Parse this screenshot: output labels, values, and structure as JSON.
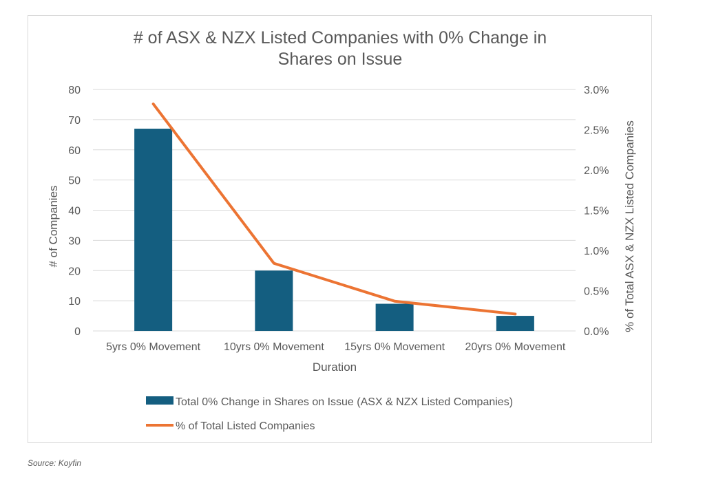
{
  "chart_data": {
    "type": "bar+line",
    "title_lines": [
      "# of ASX & NZX Listed Companies with 0% Change in",
      "Shares on Issue"
    ],
    "categories": [
      "5yrs 0% Movement",
      "10yrs 0% Movement",
      "15yrs 0% Movement",
      "20yrs 0% Movement"
    ],
    "xlabel": "Duration",
    "ylabel": "# of Companies",
    "y2label": "% of Total ASX & NZX Listed Companies",
    "ylim": [
      0,
      80
    ],
    "y_ticks": [
      0,
      10,
      20,
      30,
      40,
      50,
      60,
      70,
      80
    ],
    "y2lim": [
      0,
      3.0
    ],
    "y2_ticks": [
      0,
      0.5,
      1.0,
      1.5,
      2.0,
      2.5,
      3.0
    ],
    "y2_tick_labels": [
      "0.0%",
      "0.5%",
      "1.0%",
      "1.5%",
      "2.0%",
      "2.5%",
      "3.0%"
    ],
    "grid": true,
    "legend_position": "bottom",
    "series": [
      {
        "name": "Total 0% Change in Shares on Issue (ASX & NZX Listed Companies)",
        "type": "bar",
        "axis": "left",
        "color": "#145e80",
        "values": [
          67,
          20,
          9,
          5
        ]
      },
      {
        "name": "% of Total Listed Companies",
        "type": "line",
        "axis": "right",
        "color": "#ec7433",
        "values": [
          2.82,
          0.84,
          0.37,
          0.21
        ]
      }
    ]
  },
  "source": "Source: Koyfin"
}
